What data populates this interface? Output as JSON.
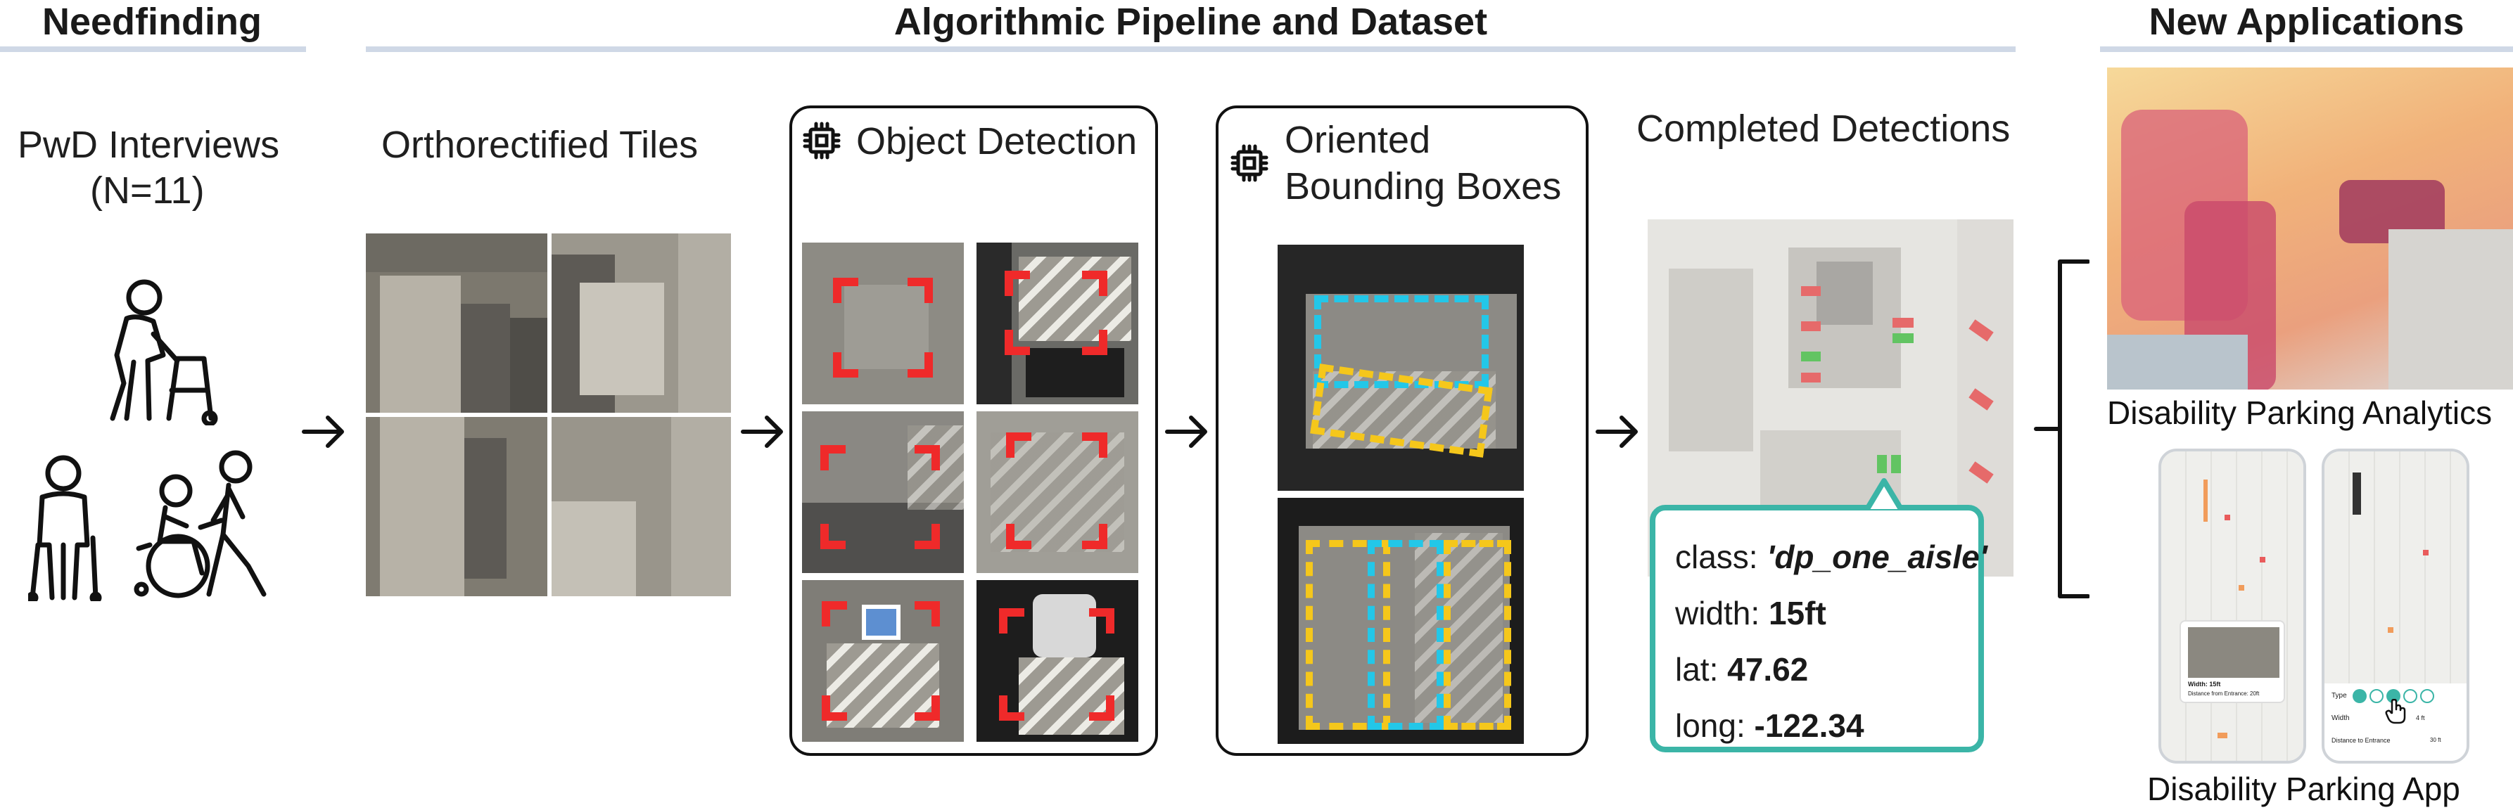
{
  "sections": {
    "needfinding": "Needfinding",
    "pipeline": "Algorithmic Pipeline and Dataset",
    "applications": "New Applications"
  },
  "needfinding": {
    "title_line1": "PwD Interviews",
    "title_line2": "(N=11)"
  },
  "tiles": {
    "title": "Orthorectified Tiles"
  },
  "object_detection": {
    "title": "Object Detection"
  },
  "oriented_boxes": {
    "title_line1": "Oriented",
    "title_line2": "Bounding Boxes"
  },
  "completed": {
    "title": "Completed Detections"
  },
  "detection_info": {
    "class_label": "class: ",
    "class_value": "'dp_one_aisle'",
    "width_label": "width: ",
    "width_value": "15ft",
    "lat_label": "lat: ",
    "lat_value": "47.62",
    "long_label": "long: ",
    "long_value": "-122.34"
  },
  "applications": {
    "analytics_caption": "Disability Parking Analytics",
    "app_caption": "Disability Parking App",
    "app_card_width": "Width: 15ft",
    "app_card_distance": "Distance from Entrance: 20ft",
    "app_filter_type": "Type",
    "app_filter_width": "Width",
    "app_filter_width_value": "4 ft",
    "app_filter_distance": "Distance to Entrance",
    "app_filter_distance_value": "30 ft"
  },
  "colors": {
    "detection_red": "#ef2a2a",
    "obb_cyan": "#23c7e8",
    "obb_yellow": "#f5c71b",
    "card_teal": "#3bb5a7",
    "section_rule": "#cfd8e6"
  },
  "icons": [
    "walker-person-icon",
    "crutch-person-icon",
    "wheelchair-assist-icon",
    "chip-icon",
    "arrow-right-icon",
    "bracket-icon"
  ]
}
